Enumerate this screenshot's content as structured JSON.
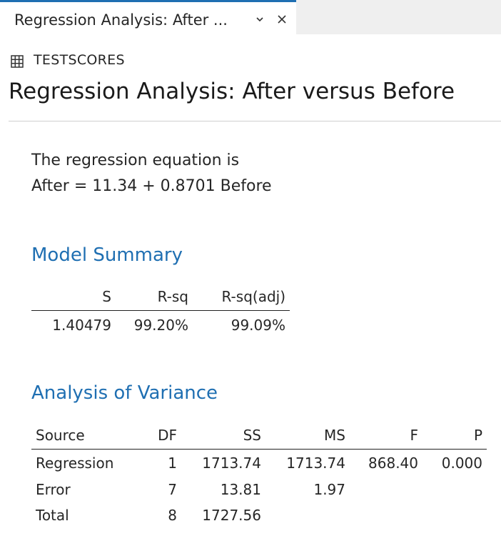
{
  "tab": {
    "title": "Regression Analysis: After ..."
  },
  "worksheet": {
    "name": "TESTSCORES"
  },
  "page": {
    "title": "Regression Analysis: After versus Before"
  },
  "equation": {
    "intro": "The regression equation is",
    "formula": "After = 11.34 + 0.8701 Before"
  },
  "model_summary": {
    "heading": "Model Summary",
    "headers": [
      "S",
      "R-sq",
      "R-sq(adj)"
    ],
    "row": [
      "1.40479",
      "99.20%",
      "99.09%"
    ]
  },
  "anova": {
    "heading": "Analysis of Variance",
    "headers": [
      "Source",
      "DF",
      "SS",
      "MS",
      "F",
      "P"
    ],
    "rows": [
      [
        "Regression",
        "1",
        "1713.74",
        "1713.74",
        "868.40",
        "0.000"
      ],
      [
        "Error",
        "7",
        "13.81",
        "1.97",
        "",
        ""
      ],
      [
        "Total",
        "8",
        "1727.56",
        "",
        "",
        ""
      ]
    ]
  },
  "colors": {
    "accent": "#1f6fb2",
    "tabbar": "#efefef"
  }
}
